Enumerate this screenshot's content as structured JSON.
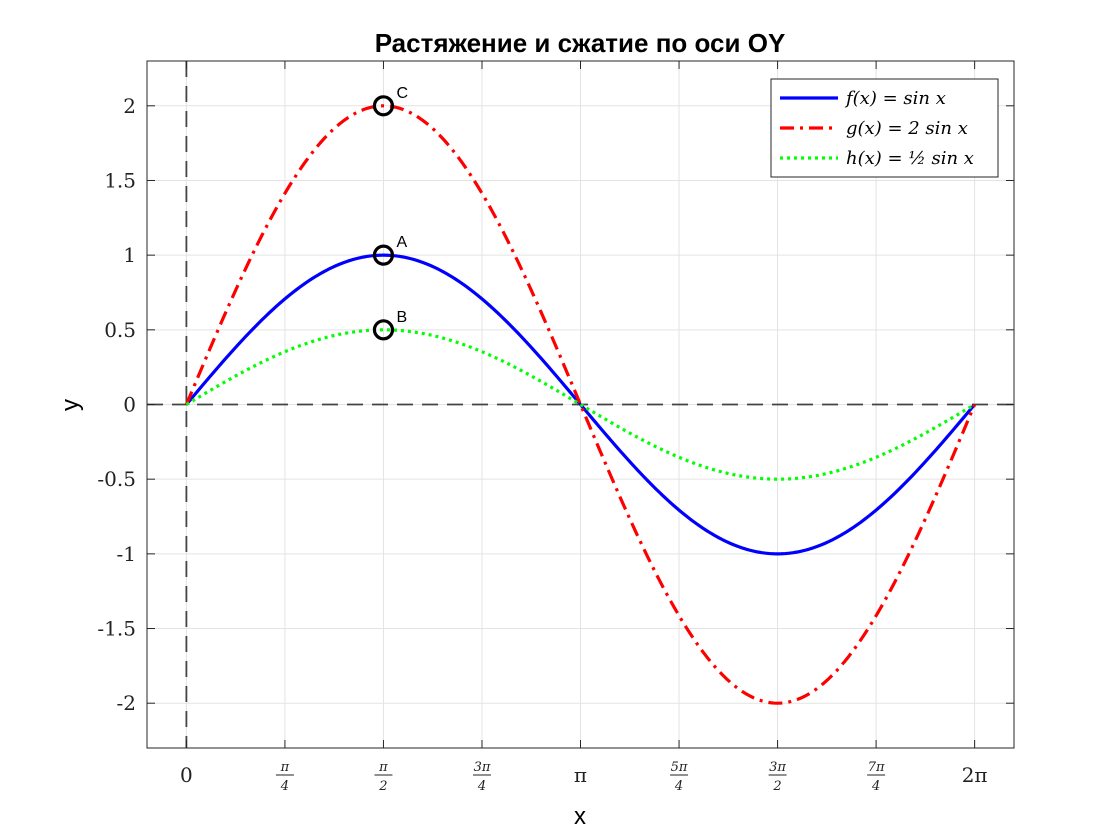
{
  "chart_data": {
    "type": "line",
    "title": "Растяжение и сжатие по оси OY",
    "xlabel": "x",
    "ylabel": "y",
    "xlim": [
      -0.314,
      6.597
    ],
    "ylim": [
      -2.3,
      2.3
    ],
    "grid": true,
    "legend_position": "top-right",
    "x_ticks": [
      {
        "value": 0,
        "label": "0"
      },
      {
        "value": 0.7854,
        "num": "π",
        "den": "4"
      },
      {
        "value": 1.5708,
        "num": "π",
        "den": "2"
      },
      {
        "value": 2.3562,
        "num": "3π",
        "den": "4"
      },
      {
        "value": 3.1416,
        "label": "π"
      },
      {
        "value": 3.927,
        "num": "5π",
        "den": "4"
      },
      {
        "value": 4.7124,
        "num": "3π",
        "den": "2"
      },
      {
        "value": 5.4978,
        "num": "7π",
        "den": "4"
      },
      {
        "value": 6.2832,
        "label": "2π"
      }
    ],
    "y_ticks": [
      {
        "value": 2,
        "label": "2"
      },
      {
        "value": 1.5,
        "label": "1.5"
      },
      {
        "value": 1,
        "label": "1"
      },
      {
        "value": 0.5,
        "label": "0.5"
      },
      {
        "value": 0,
        "label": "0"
      },
      {
        "value": -0.5,
        "label": "-0.5"
      },
      {
        "value": -1,
        "label": "-1"
      },
      {
        "value": -1.5,
        "label": "-1.5"
      },
      {
        "value": -2,
        "label": "-2"
      }
    ],
    "x_range": [
      0,
      6.2832
    ],
    "series": [
      {
        "name": "f(x) = sin x",
        "amplitude": 1,
        "color": "#0000ff",
        "style": "solid"
      },
      {
        "name": "g(x) = 2 sin x",
        "amplitude": 2,
        "color": "#ff0000",
        "style": "dash-dot"
      },
      {
        "name": "h(x) = ½ sin x",
        "amplitude": 0.5,
        "color": "#00ff00",
        "style": "dotted"
      }
    ],
    "annotations": [
      {
        "label": "C",
        "x": 1.5708,
        "y": 2
      },
      {
        "label": "A",
        "x": 1.5708,
        "y": 1
      },
      {
        "label": "B",
        "x": 1.5708,
        "y": 0.5
      }
    ]
  }
}
